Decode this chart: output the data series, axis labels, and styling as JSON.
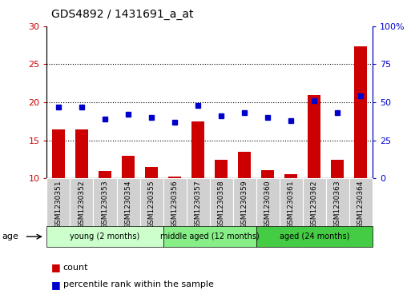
{
  "title": "GDS4892 / 1431691_a_at",
  "samples": [
    "GSM1230351",
    "GSM1230352",
    "GSM1230353",
    "GSM1230354",
    "GSM1230355",
    "GSM1230356",
    "GSM1230357",
    "GSM1230358",
    "GSM1230359",
    "GSM1230360",
    "GSM1230361",
    "GSM1230362",
    "GSM1230363",
    "GSM1230364"
  ],
  "counts": [
    16.4,
    16.4,
    11.0,
    13.0,
    11.5,
    10.2,
    17.5,
    12.4,
    13.5,
    11.1,
    10.6,
    20.9,
    12.4,
    27.3
  ],
  "percentiles": [
    47,
    47,
    39,
    42,
    40,
    37,
    48,
    41,
    43,
    40,
    38,
    51,
    43,
    54
  ],
  "ylim_left": [
    10,
    30
  ],
  "ylim_right": [
    0,
    100
  ],
  "yticks_left": [
    10,
    15,
    20,
    25,
    30
  ],
  "yticks_right": [
    0,
    25,
    50,
    75,
    100
  ],
  "bar_color": "#cc0000",
  "dot_color": "#0000cc",
  "bar_bottom": 10,
  "groups": [
    {
      "label": "young (2 months)",
      "start": 0,
      "end": 5,
      "color": "#ccffcc"
    },
    {
      "label": "middle aged (12 months)",
      "start": 5,
      "end": 9,
      "color": "#88ee88"
    },
    {
      "label": "aged (24 months)",
      "start": 9,
      "end": 14,
      "color": "#44cc44"
    }
  ],
  "tick_label_color_left": "#cc0000",
  "tick_label_color_right": "#0000cc",
  "label_bg_color": "#d0d0d0"
}
